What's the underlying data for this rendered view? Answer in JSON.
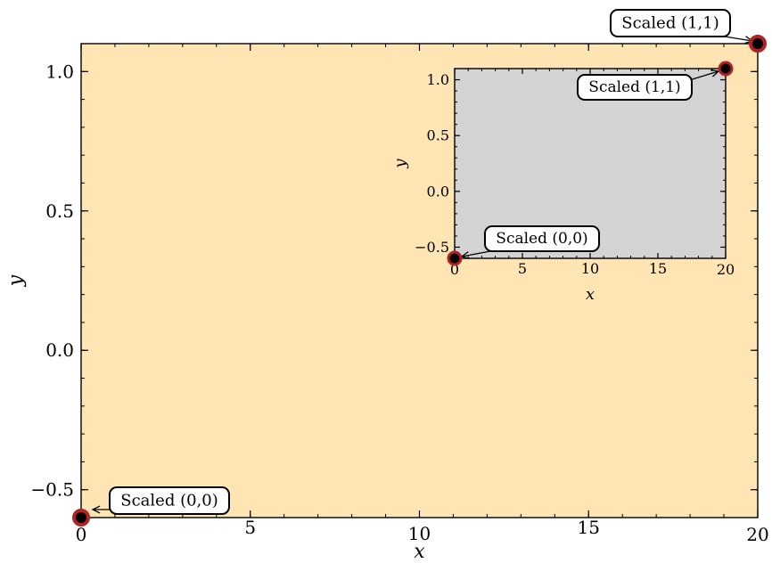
{
  "chart_data": [
    {
      "type": "scatter",
      "panel": "main",
      "xlabel": "x",
      "ylabel": "y",
      "xlim": [
        0,
        20
      ],
      "ylim": [
        -0.6,
        1.1
      ],
      "xticks": [
        {
          "value": 0,
          "label": "0"
        },
        {
          "value": 5,
          "label": "5"
        },
        {
          "value": 10,
          "label": "10"
        },
        {
          "value": 15,
          "label": "15"
        },
        {
          "value": 20,
          "label": "20"
        }
      ],
      "yticks": [
        {
          "value": -0.5,
          "label": "−0.5"
        },
        {
          "value": 0.0,
          "label": "0.0"
        },
        {
          "value": 0.5,
          "label": "0.5"
        },
        {
          "value": 1.0,
          "label": "1.0"
        }
      ],
      "background_color": "#FFE5B4",
      "marker_color": "#000000",
      "marker_edge_color": "#B22222",
      "grid": false,
      "points": [
        {
          "x": 0,
          "y": -0.6,
          "annotation": "Scaled (0,0)"
        },
        {
          "x": 20,
          "y": 1.1,
          "annotation": "Scaled (1,1)"
        }
      ]
    },
    {
      "type": "scatter",
      "panel": "inset",
      "xlabel": "x",
      "ylabel": "y",
      "xlim": [
        0,
        20
      ],
      "ylim": [
        -0.6,
        1.1
      ],
      "xticks": [
        {
          "value": 0,
          "label": "0"
        },
        {
          "value": 5,
          "label": "5"
        },
        {
          "value": 10,
          "label": "10"
        },
        {
          "value": 15,
          "label": "15"
        },
        {
          "value": 20,
          "label": "20"
        }
      ],
      "yticks": [
        {
          "value": -0.5,
          "label": "−0.5"
        },
        {
          "value": 0.0,
          "label": "0.0"
        },
        {
          "value": 0.5,
          "label": "0.5"
        },
        {
          "value": 1.0,
          "label": "1.0"
        }
      ],
      "background_color": "#D3D3D3",
      "marker_color": "#000000",
      "marker_edge_color": "#B22222",
      "grid": false,
      "points": [
        {
          "x": 0,
          "y": -0.6,
          "annotation": "Scaled (0,0)"
        },
        {
          "x": 20,
          "y": 1.1,
          "annotation": "Scaled (1,1)"
        }
      ]
    }
  ]
}
